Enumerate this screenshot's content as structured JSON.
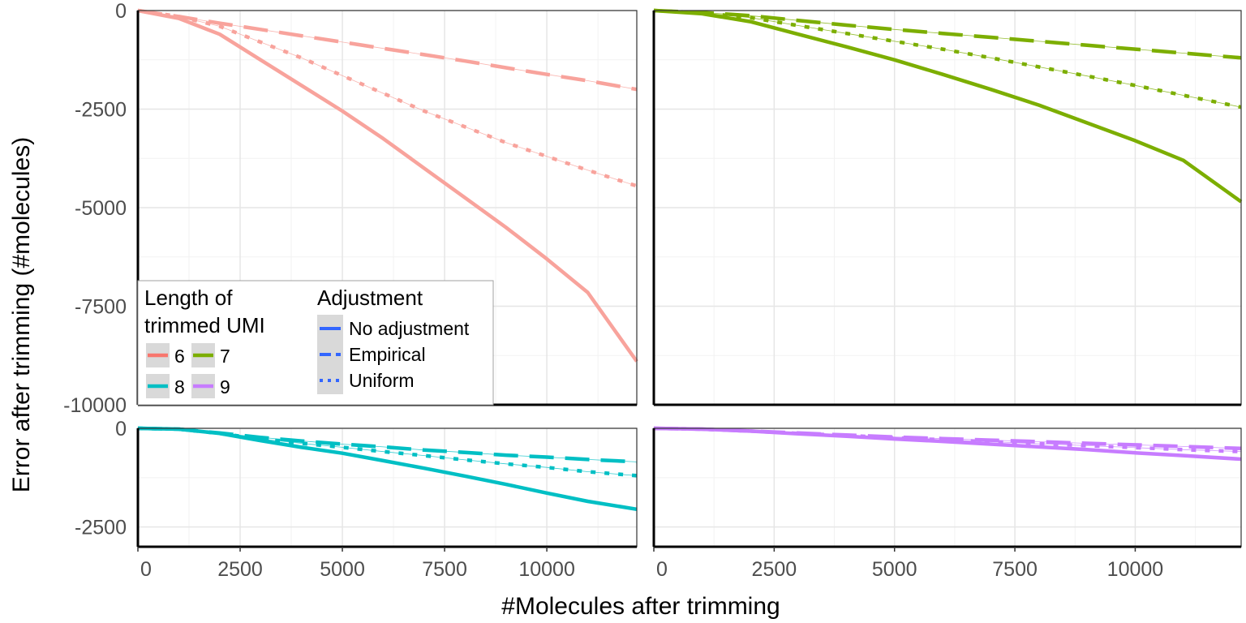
{
  "chart_data": {
    "type": "line",
    "xlabel": "#Molecules after trimming",
    "ylabel": "Error after trimming (#molecules)",
    "xlim": [
      0,
      12200
    ],
    "x_ticks": [
      0,
      2500,
      5000,
      7500,
      10000
    ],
    "x_tick_labels": [
      "0",
      "2500",
      "5000",
      "7500",
      "10000"
    ],
    "grid": true,
    "rows": [
      {
        "ylim": [
          -10000,
          0
        ],
        "y_ticks": [
          0,
          -2500,
          -5000,
          -7500,
          -10000
        ],
        "y_tick_labels": [
          "0",
          "-2500",
          "-5000",
          "-7500",
          "-10000"
        ]
      },
      {
        "ylim": [
          -3000,
          0
        ],
        "y_ticks": [
          0,
          -2500
        ],
        "y_tick_labels": [
          "0",
          "-2500"
        ]
      }
    ],
    "x": [
      0,
      1000,
      2000,
      3000,
      4000,
      5000,
      6000,
      7000,
      8000,
      9000,
      10000,
      11000,
      12200
    ],
    "panels": [
      {
        "umi_length": "6",
        "color": "#F8A39C",
        "series": [
          {
            "adjustment": "No adjustment",
            "values": [
              0,
              -200,
              -600,
              -1250,
              -1900,
              -2550,
              -3250,
              -4000,
              -4750,
              -5500,
              -6300,
              -7150,
              -8900
            ]
          },
          {
            "adjustment": "Empirical",
            "values": [
              0,
              -150,
              -320,
              -480,
              -640,
              -800,
              -960,
              -1120,
              -1280,
              -1450,
              -1620,
              -1780,
              -2000
            ]
          },
          {
            "adjustment": "Uniform",
            "values": [
              0,
              -150,
              -400,
              -800,
              -1200,
              -1650,
              -2100,
              -2550,
              -2950,
              -3350,
              -3700,
              -4050,
              -4450
            ]
          }
        ]
      },
      {
        "umi_length": "7",
        "color": "#7CAE00",
        "series": [
          {
            "adjustment": "No adjustment",
            "values": [
              0,
              -80,
              -280,
              -600,
              -920,
              -1250,
              -1620,
              -2000,
              -2400,
              -2850,
              -3300,
              -3800,
              -4850
            ]
          },
          {
            "adjustment": "Empirical",
            "values": [
              0,
              -50,
              -130,
              -250,
              -370,
              -480,
              -580,
              -680,
              -780,
              -880,
              -980,
              -1080,
              -1200
            ]
          },
          {
            "adjustment": "Uniform",
            "values": [
              0,
              -60,
              -180,
              -380,
              -580,
              -780,
              -980,
              -1200,
              -1430,
              -1660,
              -1900,
              -2150,
              -2450
            ]
          }
        ]
      },
      {
        "umi_length": "8",
        "color": "#00BFC4",
        "series": [
          {
            "adjustment": "No adjustment",
            "values": [
              0,
              -20,
              -130,
              -310,
              -480,
              -630,
              -820,
              -1010,
              -1210,
              -1420,
              -1640,
              -1850,
              -2050
            ]
          },
          {
            "adjustment": "Empirical",
            "values": [
              0,
              -20,
              -120,
              -230,
              -320,
              -400,
              -470,
              -550,
              -610,
              -680,
              -730,
              -790,
              -850
            ]
          },
          {
            "adjustment": "Uniform",
            "values": [
              0,
              -20,
              -130,
              -270,
              -380,
              -480,
              -590,
              -690,
              -800,
              -900,
              -990,
              -1100,
              -1200
            ]
          }
        ]
      },
      {
        "umi_length": "9",
        "color": "#C77CFF",
        "series": [
          {
            "adjustment": "No adjustment",
            "values": [
              0,
              -20,
              -70,
              -140,
              -200,
              -270,
              -330,
              -400,
              -470,
              -540,
              -620,
              -690,
              -780
            ]
          },
          {
            "adjustment": "Empirical",
            "values": [
              0,
              -20,
              -70,
              -120,
              -170,
              -220,
              -260,
              -300,
              -340,
              -380,
              -420,
              -460,
              -510
            ]
          },
          {
            "adjustment": "Uniform",
            "values": [
              0,
              -20,
              -70,
              -130,
              -180,
              -240,
              -290,
              -340,
              -390,
              -440,
              -490,
              -540,
              -590
            ]
          }
        ]
      }
    ],
    "legend": {
      "placement": "bottom-left inside first panel",
      "length_title_line1": "Length of",
      "length_title_line2": "trimmed UMI",
      "length_items": [
        {
          "label": "6",
          "color": "#F8766D"
        },
        {
          "label": "7",
          "color": "#7CAE00"
        },
        {
          "label": "8",
          "color": "#00BFC4"
        },
        {
          "label": "9",
          "color": "#C77CFF"
        }
      ],
      "adjustment_title": "Adjustment",
      "adjustment_items": [
        {
          "label": "No adjustment",
          "style": "solid"
        },
        {
          "label": "Empirical",
          "style": "dashed"
        },
        {
          "label": "Uniform",
          "style": "dotted"
        }
      ],
      "adjustment_key_color": "#3366FF"
    }
  }
}
